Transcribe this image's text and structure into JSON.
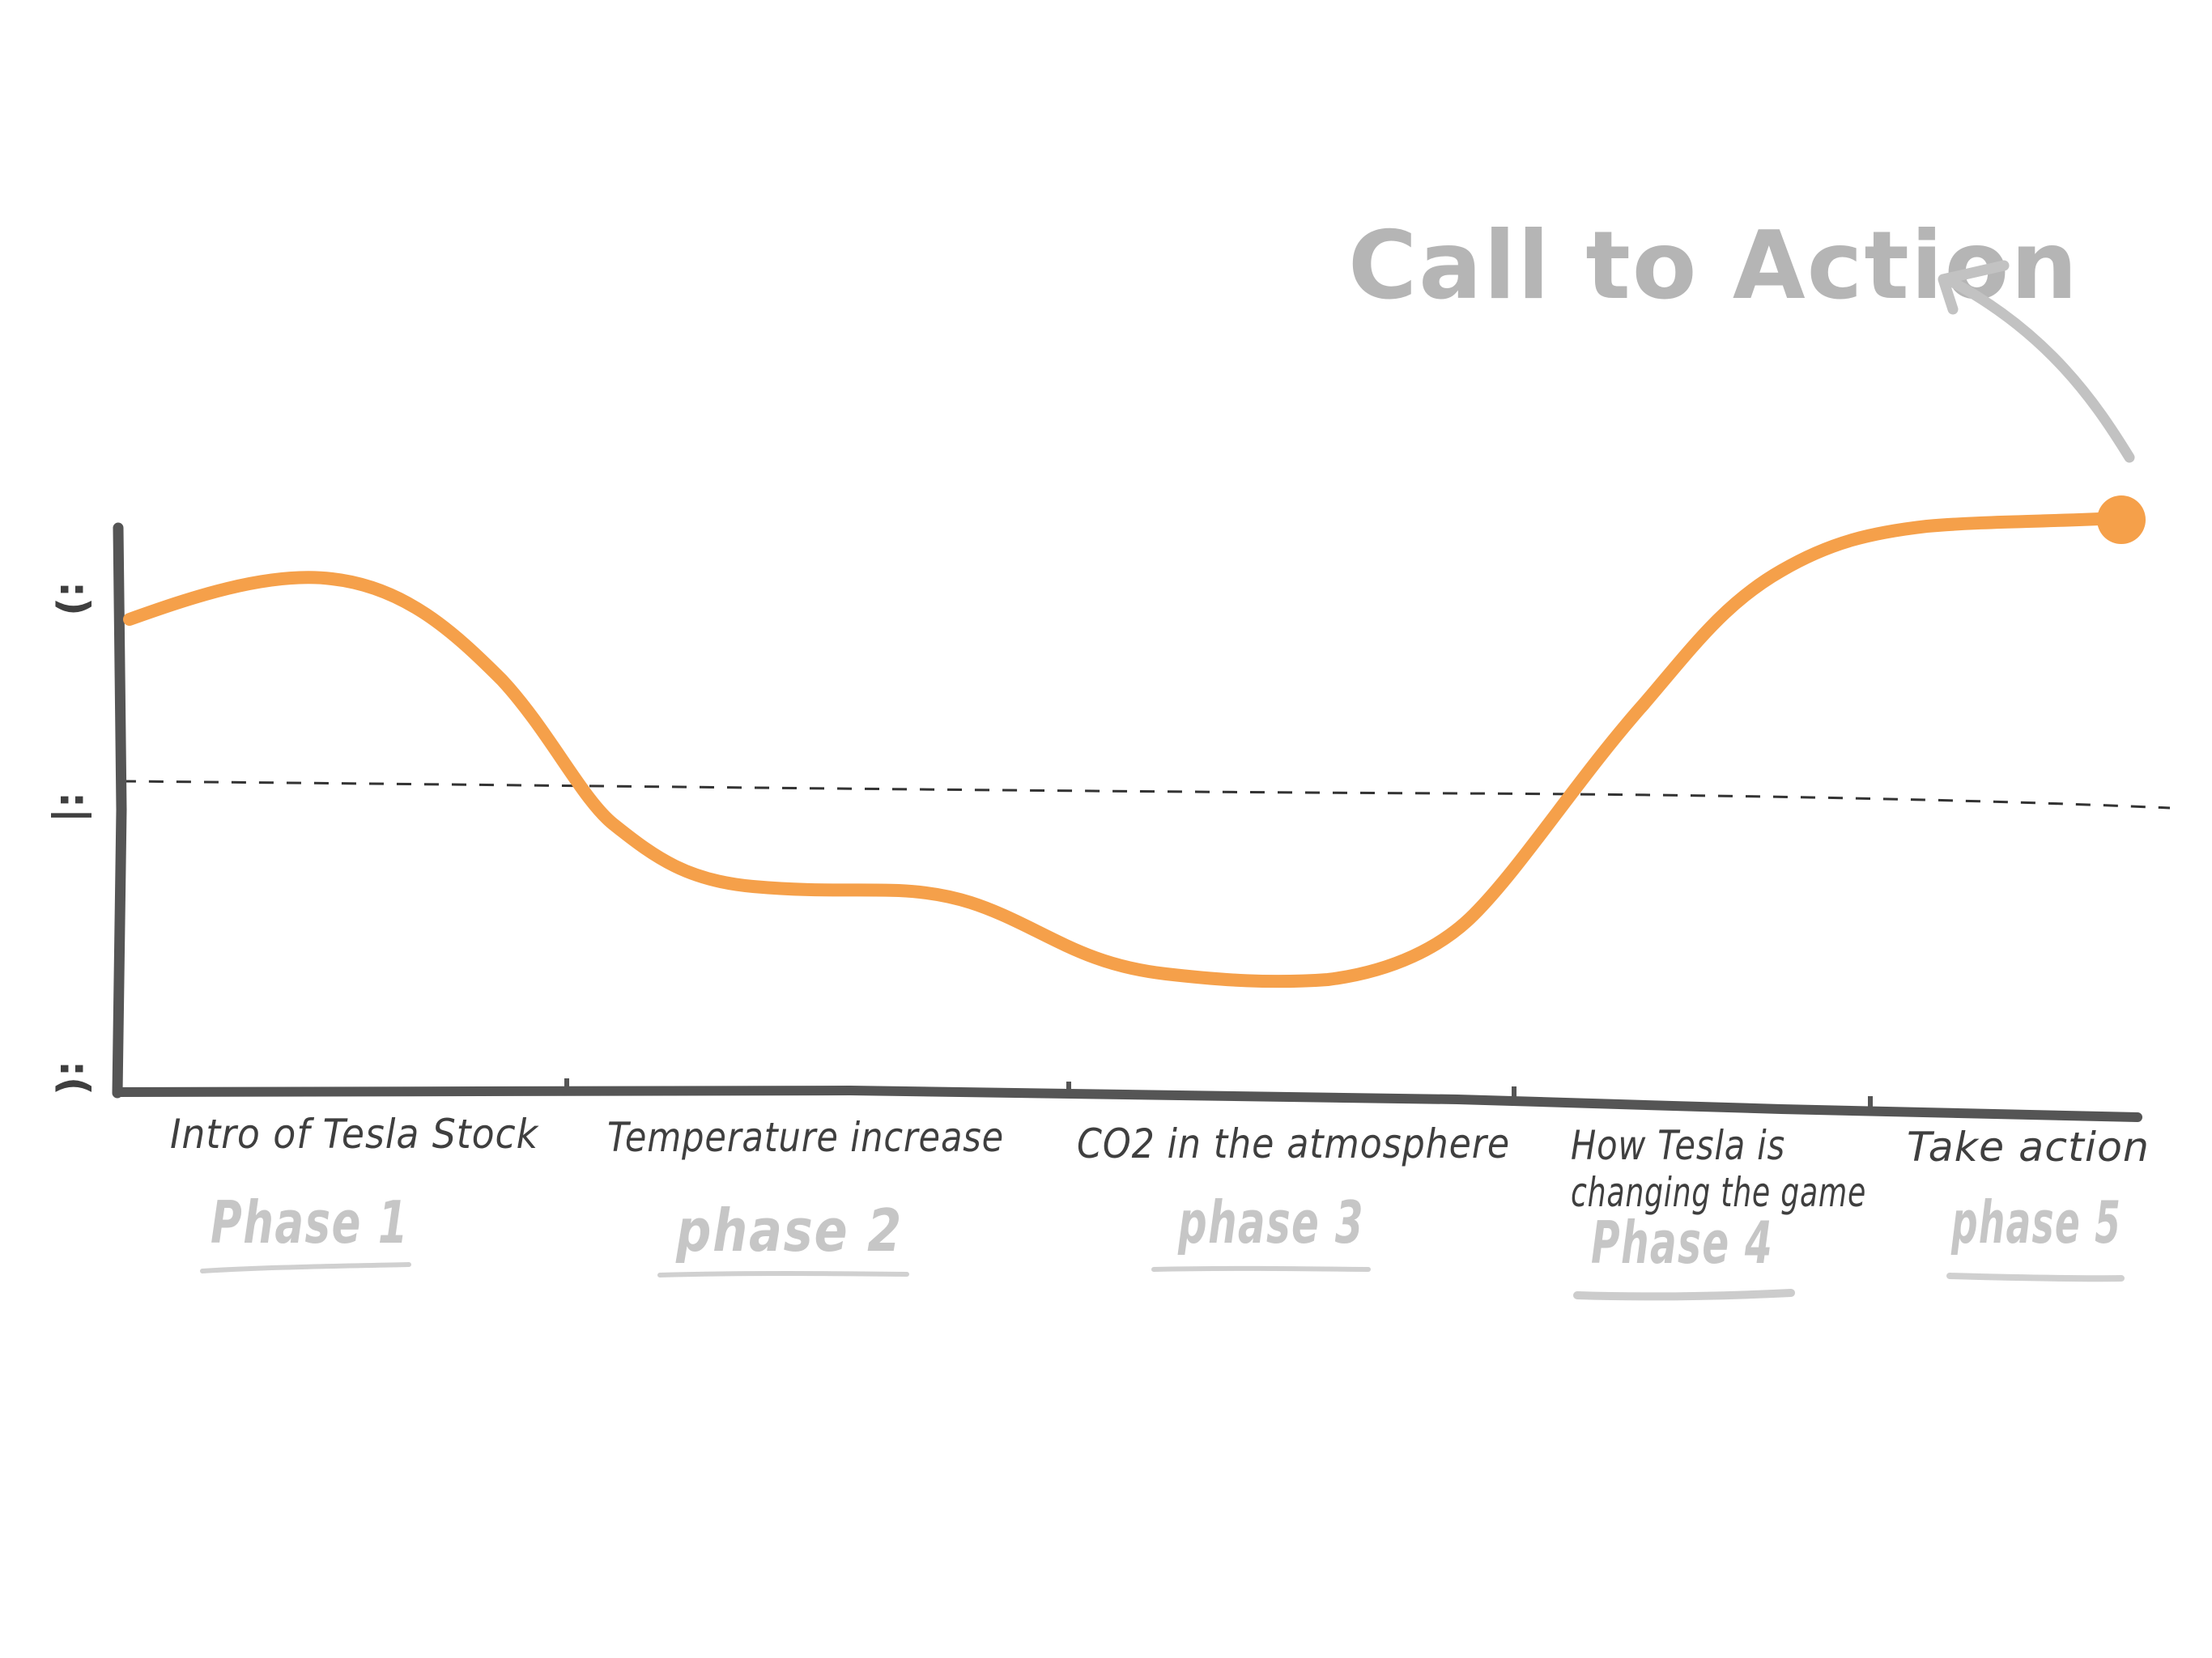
{
  "diagram": {
    "callout": "Call to Action",
    "mood_faces": [
      ":)",
      ":|",
      ":("
    ],
    "stages": [
      {
        "label": "Intro of Tesla Stock",
        "phase": "Phase 1"
      },
      {
        "label": "Temperature increase",
        "phase": "phase 2"
      },
      {
        "label": "CO2 in the atmosphere",
        "phase": "phase 3"
      },
      {
        "label_line1": "How Tesla is",
        "label_line2": "changing the game",
        "phase": "Phase 4"
      },
      {
        "label": "Take action",
        "phase": "phase 5"
      }
    ],
    "curve_color": "#f5a04a",
    "axis_color": "#555555",
    "annotation_color": "#b5b5b5"
  }
}
